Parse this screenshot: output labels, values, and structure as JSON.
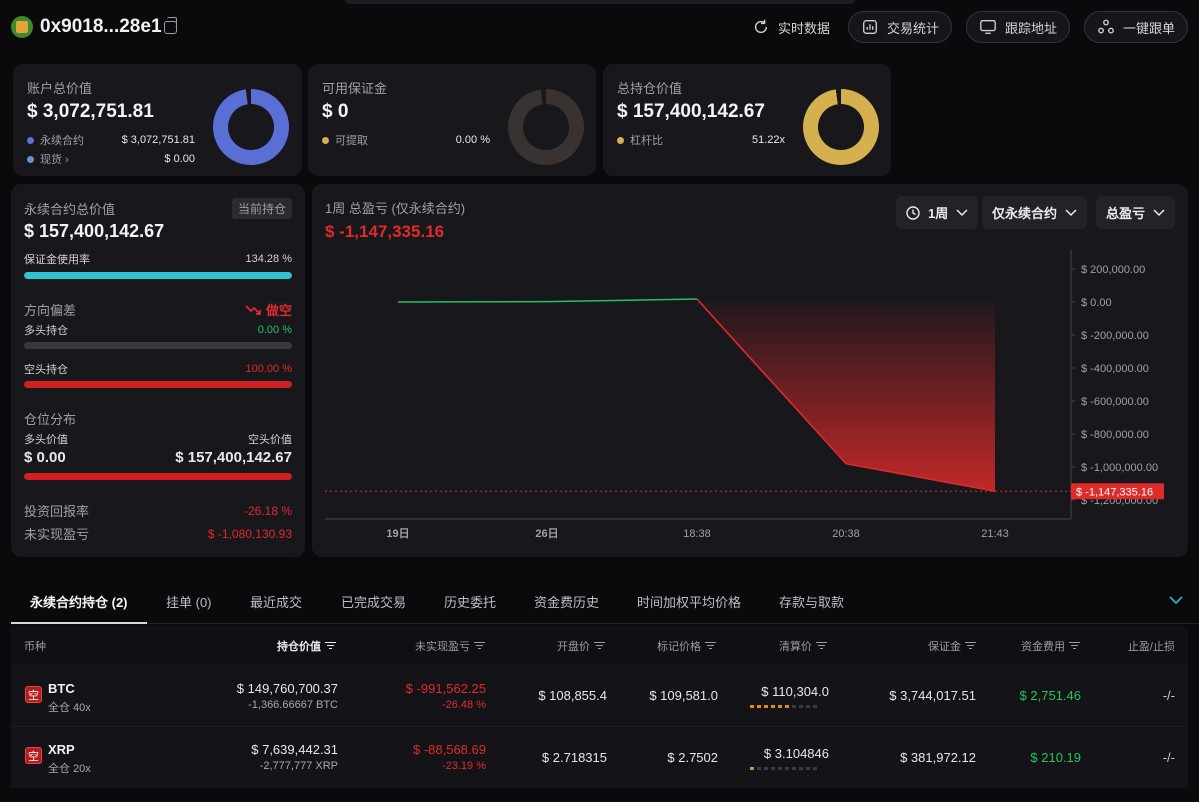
{
  "header": {
    "address": "0x9018...28e1",
    "buttons": [
      "实时数据",
      "交易统计",
      "跟踪地址",
      "一键跟单"
    ]
  },
  "summary_cards": [
    {
      "label": "账户总价值",
      "value": "$ 3,072,751.81",
      "legend": [
        {
          "label": "永续合约",
          "value": "$ 3,072,751.81",
          "color": "#5a73d8"
        },
        {
          "label": "现货 ›",
          "value": "$ 0.00",
          "color": "#6b8ed8"
        }
      ],
      "donut_color": "#5a6fd6",
      "donut_fill_percent": 100
    },
    {
      "label": "可用保证金",
      "value": "$ 0",
      "legend": [
        {
          "label": "可提取",
          "value": "0.00 %",
          "color": "#d4b04e"
        }
      ],
      "donut_color": "#3a3230",
      "donut_fill_percent": 0
    },
    {
      "label": "总持仓价值",
      "value": "$ 157,400,142.67",
      "legend": [
        {
          "label": "杠杆比",
          "value": "51.22x",
          "color": "#d4b04e"
        }
      ],
      "donut_color": "#d4b04e",
      "donut_fill_percent": 100
    }
  ],
  "perp_panel": {
    "title": "永续合约总价值",
    "badge": "当前持仓",
    "value": "$ 157,400,142.67",
    "margin_usage": {
      "label": "保证金使用率",
      "value": "134.28 %",
      "fill_percent": 100,
      "color": "#2fc3d3"
    },
    "direction": {
      "label": "方向偏差",
      "value": "做空",
      "long": {
        "label": "多头持仓",
        "value": "0.00 %",
        "fill_percent": 0
      },
      "short": {
        "label": "空头持仓",
        "value": "100.00 %",
        "fill_percent": 100
      }
    },
    "distribution": {
      "label": "仓位分布",
      "long_label": "多头价值",
      "short_label": "空头价值",
      "long_value": "$ 0.00",
      "short_value": "$ 157,400,142.67",
      "short_fill_percent": 100
    },
    "roi": {
      "label": "投资回报率",
      "value": "-26.18 %"
    },
    "unrealized": {
      "label": "未实现盈亏",
      "value": "$ -1,080,130.93"
    }
  },
  "chart_panel": {
    "title": "1周 总盈亏 (仅永续合约)",
    "value": "$ -1,147,335.16",
    "dropdowns": [
      "1周",
      "仅永续合约",
      "总盈亏"
    ]
  },
  "chart_data": {
    "type": "area",
    "x": [
      "19日",
      "26日",
      "18:38",
      "20:38",
      "21:43"
    ],
    "tick_x_labels": [
      "19日",
      "26日",
      "18:38",
      "20:38",
      "21:43"
    ],
    "series": [
      {
        "values": [
          0,
          2000,
          18000,
          -980000,
          -1147335.16
        ]
      }
    ],
    "y_ticks": [
      "$ 200,000.00",
      "$ 0.00",
      "$ -200,000.00",
      "$ -400,000.00",
      "$ -600,000.00",
      "$ -800,000.00",
      "$ -1,000,000.00",
      "$ -1,200,000.00"
    ],
    "ylim": [
      -1250000,
      250000
    ],
    "current_label": "$ -1,147,335.16",
    "colors": {
      "positive": "#22c45e",
      "negative": "#e02b2b"
    }
  },
  "tabs": [
    "永续合约持仓 (2)",
    "挂单 (0)",
    "最近成交",
    "已完成交易",
    "历史委托",
    "资金费历史",
    "时间加权平均价格",
    "存款与取款"
  ],
  "table": {
    "columns": [
      "币种",
      "持仓价值",
      "未实现盈亏",
      "开盘价",
      "标记价格",
      "清算价",
      "保证金",
      "资金费用",
      "止盈/止损"
    ],
    "rows": [
      {
        "side": "空",
        "symbol": "BTC",
        "mode": "全仓 40x",
        "position_value": "$ 149,760,700.37",
        "position_size": "-1,366.66667 BTC",
        "pnl": "$ -991,562.25",
        "pnl_pct": "-26.48 %",
        "entry": "$ 108,855.4",
        "mark": "$ 109,581.0",
        "liq": "$ 110,304.0",
        "liq_level": 0.6,
        "margin": "$ 3,744,017.51",
        "funding": "$ 2,751.46",
        "tpsl": "-/-"
      },
      {
        "side": "空",
        "symbol": "XRP",
        "mode": "全仓 20x",
        "position_value": "$ 7,639,442.31",
        "position_size": "-2,777,777 XRP",
        "pnl": "$ -88,568.69",
        "pnl_pct": "-23.19 %",
        "entry": "$ 2.718315",
        "mark": "$ 2.7502",
        "liq": "$ 3.104846",
        "liq_level": 0.1,
        "margin": "$ 381,972.12",
        "funding": "$ 210.19",
        "tpsl": "-/-"
      }
    ]
  }
}
